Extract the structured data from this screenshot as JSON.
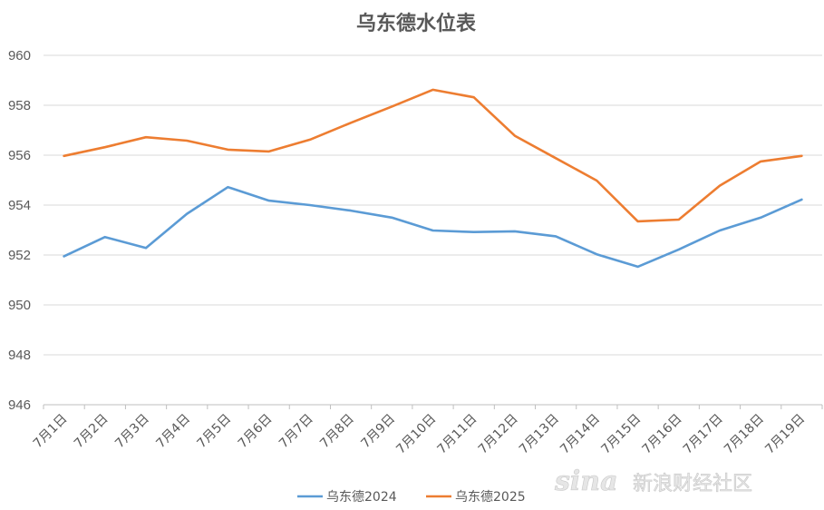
{
  "chart_data": {
    "type": "line",
    "title": "乌东德水位表",
    "xlabel": "",
    "ylabel": "",
    "ylim": [
      946,
      960
    ],
    "yticks": [
      946,
      948,
      950,
      952,
      954,
      956,
      958,
      960
    ],
    "grid": true,
    "legend_position": "bottom",
    "categories": [
      "7月1日",
      "7月2日",
      "7月3日",
      "7月4日",
      "7月5日",
      "7月6日",
      "7月7日",
      "7月8日",
      "7月9日",
      "7月10日",
      "7月11日",
      "7月12日",
      "7月13日",
      "7月14日",
      "7月15日",
      "7月16日",
      "7月17日",
      "7月18日",
      "7月19日"
    ],
    "series": [
      {
        "name": "乌东德2024",
        "color": "#5b9bd5",
        "values": [
          951.95,
          952.72,
          952.28,
          953.65,
          954.72,
          954.18,
          954.0,
          953.78,
          953.5,
          952.98,
          952.92,
          952.95,
          952.75,
          952.03,
          951.53,
          952.22,
          952.98,
          953.5,
          954.22
        ]
      },
      {
        "name": "乌东德2025",
        "color": "#ed7d31",
        "values": [
          955.97,
          956.32,
          956.72,
          956.58,
          956.22,
          956.15,
          956.62,
          957.3,
          957.95,
          958.62,
          958.32,
          956.78,
          955.88,
          954.98,
          953.35,
          953.42,
          954.78,
          955.75,
          955.97
        ]
      }
    ]
  },
  "watermark": {
    "logo": "sina",
    "text": "新浪财经社区"
  }
}
